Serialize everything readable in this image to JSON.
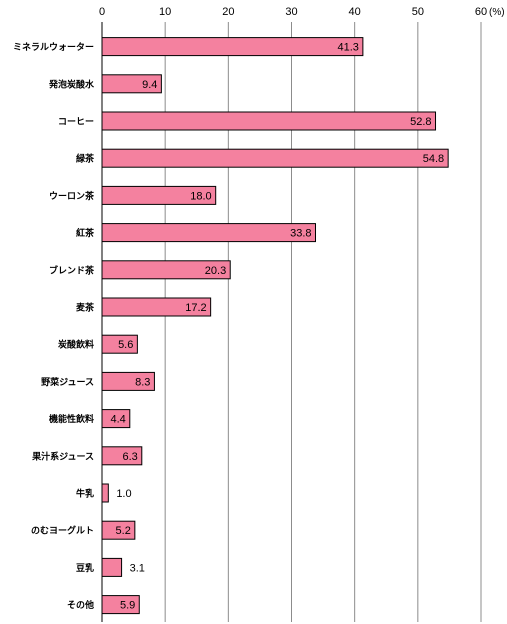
{
  "chart_data": {
    "type": "bar",
    "orientation": "horizontal",
    "unit_label": "(%)",
    "xlim": [
      0,
      60
    ],
    "x_ticks": [
      "0",
      "10",
      "20",
      "30",
      "40",
      "50",
      "60"
    ],
    "grid": true,
    "bar_color": "#f4819f",
    "categories": [
      "ミネラルウォーター",
      "発泡炭酸水",
      "コーヒー",
      "緑茶",
      "ウーロン茶",
      "紅茶",
      "ブレンド茶",
      "麦茶",
      "炭酸飲料",
      "野菜ジュース",
      "機能性飲料",
      "果汁系ジュース",
      "牛乳",
      "のむヨーグルト",
      "豆乳",
      "その他"
    ],
    "values": [
      41.3,
      9.4,
      52.8,
      54.8,
      18.0,
      33.8,
      20.3,
      17.2,
      5.6,
      8.3,
      4.4,
      6.3,
      1.0,
      5.2,
      3.1,
      5.9
    ],
    "value_labels": [
      "41.3",
      "9.4",
      "52.8",
      "54.8",
      "18.0",
      "33.8",
      "20.3",
      "17.2",
      "5.6",
      "8.3",
      "4.4",
      "6.3",
      "1.0",
      "5.2",
      "3.1",
      "5.9"
    ]
  }
}
